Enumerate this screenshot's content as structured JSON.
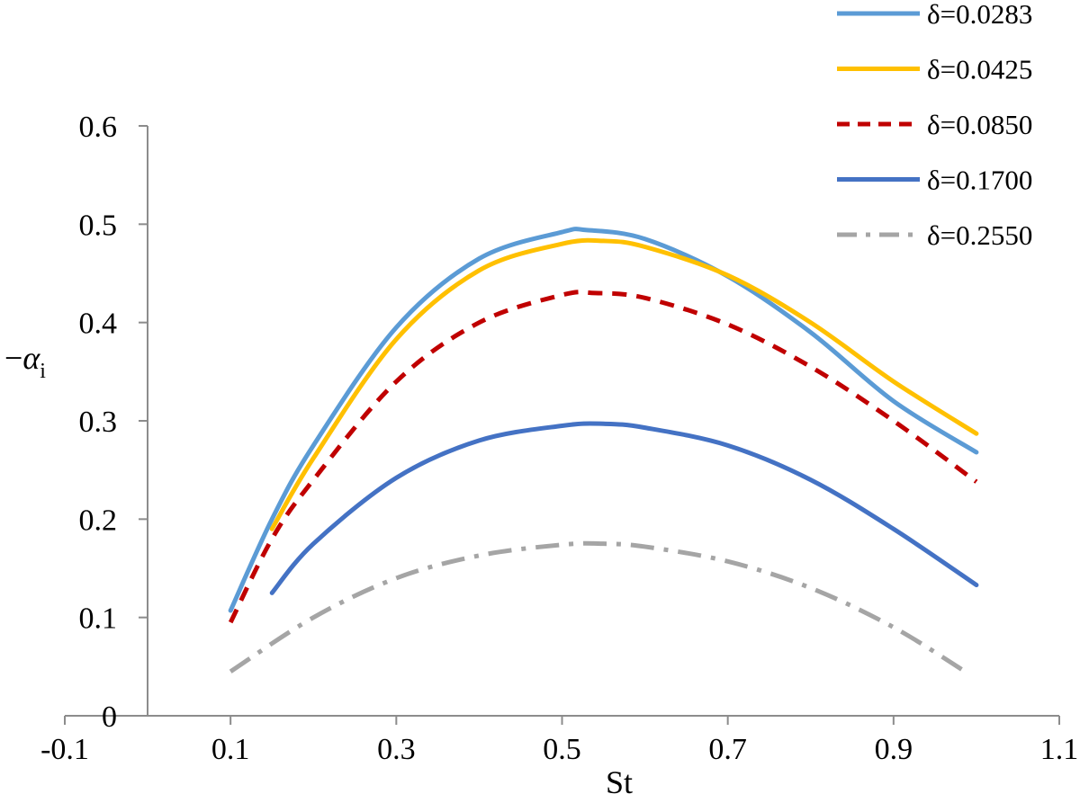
{
  "chart_data": {
    "type": "line",
    "title": "",
    "xlabel": "St",
    "ylabel_prefix": "−",
    "ylabel_symbol": "α",
    "ylabel_subscript": "i",
    "xlim": [
      -0.1,
      1.1
    ],
    "ylim": [
      0,
      0.6
    ],
    "x_ticks": [
      -0.1,
      0.1,
      0.3,
      0.5,
      0.7,
      0.9,
      1.1
    ],
    "y_ticks": [
      0,
      0.1,
      0.2,
      0.3,
      0.4,
      0.5,
      0.6
    ],
    "x_tick_labels": [
      "-0.1",
      "0.1",
      "0.3",
      "0.5",
      "0.7",
      "0.9",
      "1.1"
    ],
    "y_tick_labels": [
      "0",
      "0.1",
      "0.2",
      "0.3",
      "0.4",
      "0.5",
      "0.6"
    ],
    "grid": false,
    "legend_position": "top-right",
    "series": [
      {
        "name": "δ=0.0283",
        "color": "#5b9bd5",
        "dash": "solid",
        "x": [
          0.1,
          0.15,
          0.2,
          0.3,
          0.4,
          0.5,
          0.53,
          0.6,
          0.7,
          0.8,
          0.9,
          1.0
        ],
        "y": [
          0.107,
          0.2,
          0.275,
          0.395,
          0.465,
          0.492,
          0.494,
          0.485,
          0.447,
          0.39,
          0.32,
          0.268
        ]
      },
      {
        "name": "δ=0.0425",
        "color": "#ffc000",
        "dash": "solid",
        "x": [
          0.15,
          0.2,
          0.3,
          0.4,
          0.5,
          0.55,
          0.6,
          0.7,
          0.8,
          0.9,
          1.0
        ],
        "y": [
          0.19,
          0.262,
          0.383,
          0.453,
          0.48,
          0.483,
          0.477,
          0.448,
          0.4,
          0.34,
          0.287
        ]
      },
      {
        "name": "δ=0.0850",
        "color": "#c00000",
        "dash": "dash",
        "x": [
          0.1,
          0.15,
          0.2,
          0.3,
          0.4,
          0.5,
          0.54,
          0.6,
          0.7,
          0.8,
          0.9,
          1.0
        ],
        "y": [
          0.095,
          0.18,
          0.24,
          0.34,
          0.4,
          0.428,
          0.43,
          0.425,
          0.398,
          0.355,
          0.3,
          0.238
        ]
      },
      {
        "name": "δ=0.1700",
        "color": "#4472c4",
        "dash": "solid",
        "x": [
          0.15,
          0.2,
          0.3,
          0.4,
          0.5,
          0.55,
          0.6,
          0.7,
          0.8,
          0.9,
          1.0
        ],
        "y": [
          0.125,
          0.175,
          0.242,
          0.28,
          0.295,
          0.297,
          0.293,
          0.275,
          0.24,
          0.19,
          0.133
        ]
      },
      {
        "name": "δ=0.2550",
        "color": "#a5a5a5",
        "dash": "dashdot",
        "x": [
          0.1,
          0.2,
          0.3,
          0.4,
          0.5,
          0.55,
          0.6,
          0.7,
          0.8,
          0.9,
          0.99
        ],
        "y": [
          0.045,
          0.1,
          0.14,
          0.163,
          0.174,
          0.175,
          0.172,
          0.157,
          0.13,
          0.09,
          0.043
        ]
      }
    ]
  }
}
